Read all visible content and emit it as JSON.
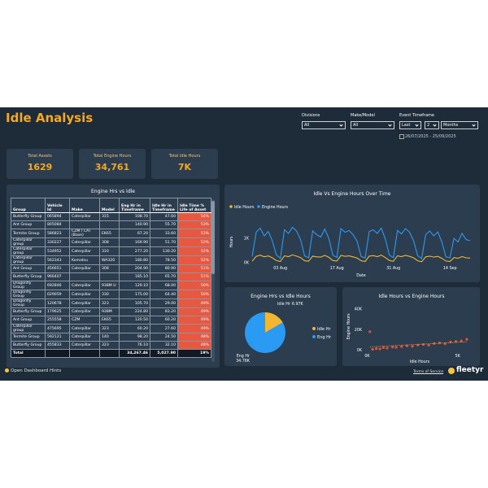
{
  "header": {
    "title": "Idle Analysis"
  },
  "filters": [
    {
      "label": "Divisions",
      "value": "All"
    },
    {
      "label": "Make/Model",
      "value": "All"
    },
    {
      "label": "Event Timeframe",
      "values": [
        "Last",
        "2",
        "Months"
      ],
      "range": "26/07/2025 - 25/09/2025"
    }
  ],
  "kpis": [
    {
      "label": "Total Assets",
      "value": 1629
    },
    {
      "label": "Total Engine Hours",
      "value": "34,761"
    },
    {
      "label": "Total Idle Hours",
      "value": "7K"
    }
  ],
  "table": {
    "title": "Engine Hrs vs Idle",
    "columns": [
      "Group",
      "Vehicle Id",
      "Make",
      "Model",
      "Eng Hr in Timeframe",
      "Idle Hr in Timeframe",
      "Idle Time % Life of Asset"
    ],
    "rows": [
      [
        "Butterfly Group",
        "065894",
        "Caterpillar",
        "315",
        "108.70",
        "47.60",
        "54%"
      ],
      [
        "Ant Group",
        "805084",
        null,
        null,
        "140.90",
        "55.70",
        "53%"
      ],
      [
        "Termite Group",
        "586823",
        "CZM / CAT (Base)",
        "EK65",
        "67.20",
        "33.60",
        "53%"
      ],
      [
        "Caterpillar group",
        "330227",
        "Caterpillar",
        "308",
        "169.90",
        "51.70",
        "52%"
      ],
      [
        "Caterpillar group",
        "534952",
        "Caterpillar",
        "310",
        "277.20",
        "130.20",
        "52%"
      ],
      [
        "Caterpillar group",
        "562343",
        "Komatsu",
        "WA320",
        "180.80",
        "78.50",
        "52%"
      ],
      [
        "Ant Group",
        "456651",
        "Caterpillar",
        "308",
        "204.90",
        "80.90",
        "51%"
      ],
      [
        "Butterfly Group",
        "966407",
        null,
        null,
        "185.10",
        "65.70",
        "51%"
      ],
      [
        "Dragonfly Group",
        "692846",
        "Caterpillar",
        "938M U",
        "129.10",
        "68.00",
        "50%"
      ],
      [
        "Dragonfly Group",
        "029059",
        "Caterpillar",
        "330",
        "175.00",
        "64.40",
        "50%"
      ],
      [
        "Dragonfly Group",
        "120678",
        "Caterpillar",
        "323",
        "105.70",
        "29.00",
        "49%"
      ],
      [
        "Butterfly Group",
        "179625",
        "Caterpillar",
        "938M",
        "224.80",
        "83.20",
        "49%"
      ],
      [
        "Ant Group",
        "255558",
        "CZM",
        "EK65",
        "120.50",
        "60.20",
        "49%"
      ],
      [
        "Caterpillar group",
        "475695",
        "Caterpillar",
        "323",
        "60.20",
        "27.60",
        "49%"
      ],
      [
        "Termite Group",
        "592121",
        "Caterpillar",
        "140",
        "98.20",
        "24.50",
        "48%"
      ],
      [
        "Butterfly Group",
        "455833",
        "Caterpillar",
        "323",
        "76.10",
        "32.10",
        "48%"
      ]
    ],
    "total": {
      "label": "Total",
      "eng": "34,267.46",
      "idle": "5,027.90",
      "pct": "19%"
    }
  },
  "chart_data": [
    {
      "type": "line",
      "title": "Idle Vs Engine Hours Over Time",
      "x_label": "Date",
      "y_label": "Hours",
      "categories": [
        null,
        null,
        null,
        null,
        null,
        null,
        null,
        "03 Aug",
        null,
        null,
        null,
        null,
        null,
        null,
        null,
        null,
        null,
        null,
        null,
        null,
        null,
        "17 Aug",
        null,
        null,
        null,
        null,
        null,
        null,
        null,
        null,
        null,
        null,
        null,
        null,
        null,
        "31 Aug",
        null,
        null,
        null,
        null,
        null,
        null,
        null,
        null,
        null,
        null,
        null,
        null,
        null,
        "14 Sep",
        null,
        null,
        null,
        null,
        null
      ],
      "series": [
        {
          "name": "Idle Hours",
          "color": "#f2b630",
          "values": [
            60,
            260,
            310,
            240,
            280,
            200,
            90,
            50,
            280,
            250,
            320,
            270,
            210,
            80,
            60,
            270,
            240,
            230,
            300,
            220,
            90,
            70,
            300,
            260,
            280,
            240,
            190,
            80,
            50,
            270,
            290,
            250,
            310,
            210,
            90,
            60,
            280,
            250,
            300,
            260,
            200,
            80,
            40,
            240,
            270,
            230,
            260,
            180,
            70,
            50,
            210,
            180,
            250,
            200,
            190
          ]
        },
        {
          "name": "Engine Hours",
          "color": "#2b9af3",
          "values": [
            250,
            1250,
            1420,
            1100,
            1280,
            900,
            320,
            180,
            1350,
            1200,
            1450,
            1300,
            950,
            280,
            200,
            1300,
            1150,
            1050,
            1380,
            1000,
            300,
            220,
            1400,
            1250,
            1320,
            1150,
            880,
            260,
            190,
            1280,
            1350,
            1200,
            1420,
            970,
            310,
            210,
            1320,
            1180,
            1400,
            1250,
            900,
            290,
            170,
            1150,
            1300,
            1100,
            1260,
            850,
            240,
            200,
            1000,
            850,
            1200,
            950,
            900
          ]
        }
      ],
      "ylim": [
        0,
        1700
      ],
      "yticks": [
        {
          "value": 0,
          "label": "0K"
        },
        {
          "value": 1000,
          "label": "1K"
        }
      ]
    },
    {
      "type": "pie",
      "title": "Engine Hrs vs Idle Hours",
      "categories": [
        "Idle Hr",
        "Eng Hr"
      ],
      "values": [
        6970,
        34760
      ],
      "value_labels": [
        "6.97K",
        "34.76K"
      ],
      "colors": [
        "#f2b630",
        "#2b9af3"
      ]
    },
    {
      "type": "scatter",
      "title": "Idle Hours vs Engine Hours",
      "x_label": "Idle Hours",
      "y_label": "Engine Hours",
      "color": "#e8513a",
      "trendline_color": "#f2b630",
      "x": [
        150,
        300,
        500,
        700,
        900,
        1100,
        1400,
        1600,
        1900,
        2200,
        2500,
        2800,
        3100,
        3400,
        3700,
        4000,
        4300,
        4600,
        4900,
        5200,
        5500
      ],
      "y": [
        18000,
        800,
        1500,
        1200,
        2500,
        2000,
        3000,
        2800,
        3500,
        4200,
        3800,
        5000,
        5500,
        4800,
        6500,
        7000,
        6200,
        8000,
        8500,
        9000,
        10500
      ],
      "xlim": [
        -200,
        6000
      ],
      "ylim": [
        -2000,
        48000
      ],
      "xticks": [
        {
          "value": 0,
          "label": "0K"
        },
        {
          "value": 5000,
          "label": "5K"
        }
      ],
      "yticks": [
        {
          "value": 0,
          "label": "0K"
        },
        {
          "value": 20000,
          "label": "20K"
        },
        {
          "value": 40000,
          "label": "40K"
        }
      ]
    }
  ],
  "footer": {
    "hints": "Open Dashboard Hints",
    "terms": "Terms of Service",
    "brand": "fleetyr"
  }
}
